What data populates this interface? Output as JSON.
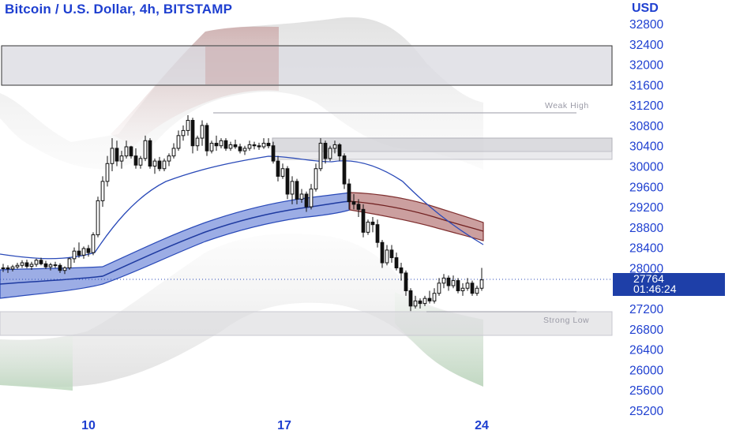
{
  "header": {
    "title": "Bitcoin / U.S. Dollar, 4h, BITSTAMP",
    "currency": "USD"
  },
  "price_label": {
    "price": "27764",
    "countdown": "01:46:24"
  },
  "zones": {
    "weak_high": "Weak High",
    "strong_low": "Strong Low"
  },
  "colors": {
    "accent": "#1e3fd0",
    "candle": "#111111",
    "ma_band": "#3a5bc8",
    "bear_band": "#a05050",
    "zone_gray": "#d0d0d6"
  },
  "chart_data": {
    "type": "candlestick",
    "symbol": "Bitcoin / U.S. Dollar",
    "interval": "4h",
    "exchange": "BITSTAMP",
    "y_ticks": [
      32800,
      32400,
      32000,
      31600,
      31200,
      30800,
      30400,
      30000,
      29600,
      29200,
      28800,
      28400,
      28000,
      27600,
      27200,
      26800,
      26400,
      26000,
      25600,
      25200
    ],
    "x_ticks": [
      "10",
      "17",
      "24"
    ],
    "ylim": [
      25100,
      33050
    ],
    "current_price": 27764,
    "candles": [
      [
        28000,
        28080,
        27920,
        28000
      ],
      [
        28000,
        28050,
        27900,
        27980
      ],
      [
        27980,
        28060,
        27930,
        28020
      ],
      [
        28020,
        28100,
        27980,
        28050
      ],
      [
        28050,
        28150,
        28000,
        28100
      ],
      [
        28100,
        28160,
        27990,
        28030
      ],
      [
        28030,
        28120,
        27960,
        28070
      ],
      [
        28070,
        28180,
        28020,
        28150
      ],
      [
        28150,
        28200,
        28050,
        28080
      ],
      [
        28080,
        28140,
        27980,
        28020
      ],
      [
        28020,
        28100,
        27950,
        28060
      ],
      [
        28060,
        28120,
        28000,
        28050
      ],
      [
        28050,
        28090,
        27900,
        27950
      ],
      [
        27950,
        28030,
        27880,
        28000
      ],
      [
        28000,
        28200,
        27960,
        28180
      ],
      [
        28180,
        28400,
        28100,
        28330
      ],
      [
        28330,
        28500,
        28200,
        28250
      ],
      [
        28250,
        28420,
        28180,
        28380
      ],
      [
        28380,
        28450,
        28220,
        28300
      ],
      [
        28300,
        28700,
        28250,
        28650
      ],
      [
        28650,
        29400,
        28600,
        29320
      ],
      [
        29320,
        29800,
        29200,
        29700
      ],
      [
        29700,
        30200,
        29600,
        30050
      ],
      [
        30050,
        30550,
        29900,
        30350
      ],
      [
        30350,
        30500,
        30000,
        30100
      ],
      [
        30100,
        30300,
        29950,
        30200
      ],
      [
        30200,
        30500,
        30150,
        30380
      ],
      [
        30380,
        30400,
        30150,
        30200
      ],
      [
        30200,
        30350,
        29950,
        30020
      ],
      [
        30020,
        30200,
        29950,
        30150
      ],
      [
        30150,
        30600,
        30100,
        30500
      ],
      [
        30500,
        30550,
        29950,
        30000
      ],
      [
        30000,
        30150,
        29850,
        30100
      ],
      [
        30100,
        30180,
        29900,
        29950
      ],
      [
        29950,
        30150,
        29900,
        30100
      ],
      [
        30100,
        30250,
        30000,
        30200
      ],
      [
        30200,
        30450,
        30150,
        30350
      ],
      [
        30350,
        30700,
        30300,
        30600
      ],
      [
        30600,
        30800,
        30500,
        30700
      ],
      [
        30700,
        31000,
        30600,
        30900
      ],
      [
        30900,
        30950,
        30250,
        30400
      ],
      [
        30400,
        30600,
        30300,
        30550
      ],
      [
        30550,
        30900,
        30400,
        30800
      ],
      [
        30800,
        30850,
        30200,
        30300
      ],
      [
        30300,
        30500,
        30250,
        30450
      ],
      [
        30450,
        30600,
        30300,
        30400
      ],
      [
        30400,
        30550,
        30350,
        30500
      ],
      [
        30500,
        30550,
        30300,
        30350
      ],
      [
        30350,
        30480,
        30300,
        30420
      ],
      [
        30420,
        30520,
        30340,
        30380
      ],
      [
        30380,
        30440,
        30250,
        30300
      ],
      [
        30300,
        30400,
        30220,
        30350
      ],
      [
        30350,
        30500,
        30300,
        30420
      ],
      [
        30420,
        30480,
        30330,
        30400
      ],
      [
        30400,
        30460,
        30320,
        30380
      ],
      [
        30380,
        30550,
        30340,
        30450
      ],
      [
        30450,
        30550,
        30350,
        30400
      ],
      [
        30400,
        30480,
        30050,
        30100
      ],
      [
        30100,
        30200,
        29700,
        29800
      ],
      [
        29800,
        30050,
        29750,
        29950
      ],
      [
        29950,
        30000,
        29350,
        29450
      ],
      [
        29450,
        29800,
        29250,
        29700
      ],
      [
        29700,
        29750,
        29250,
        29350
      ],
      [
        29350,
        29550,
        29280,
        29450
      ],
      [
        29450,
        29500,
        29100,
        29200
      ],
      [
        29200,
        29650,
        29150,
        29550
      ],
      [
        29550,
        30050,
        29500,
        29950
      ],
      [
        29950,
        30550,
        29900,
        30450
      ],
      [
        30450,
        30500,
        30050,
        30150
      ],
      [
        30150,
        30400,
        30100,
        30350
      ],
      [
        30350,
        30500,
        30250,
        30420
      ],
      [
        30420,
        30450,
        30100,
        30200
      ],
      [
        30200,
        30250,
        29550,
        29650
      ],
      [
        29650,
        29750,
        29150,
        29300
      ],
      [
        29300,
        29450,
        29150,
        29250
      ],
      [
        29250,
        29350,
        29000,
        29150
      ],
      [
        29150,
        29250,
        28600,
        28700
      ],
      [
        28700,
        28950,
        28650,
        28900
      ],
      [
        28900,
        29000,
        28700,
        28850
      ],
      [
        28850,
        28950,
        28400,
        28500
      ],
      [
        28500,
        28550,
        28000,
        28100
      ],
      [
        28100,
        28450,
        28050,
        28350
      ],
      [
        28350,
        28450,
        28100,
        28200
      ],
      [
        28200,
        28300,
        27950,
        28000
      ],
      [
        28000,
        28100,
        27750,
        27900
      ],
      [
        27900,
        27950,
        27450,
        27550
      ],
      [
        27550,
        27600,
        27150,
        27250
      ],
      [
        27250,
        27450,
        27200,
        27350
      ],
      [
        27350,
        27400,
        27200,
        27300
      ],
      [
        27300,
        27450,
        27250,
        27400
      ],
      [
        27400,
        27550,
        27300,
        27350
      ],
      [
        27350,
        27600,
        27300,
        27500
      ],
      [
        27500,
        27800,
        27450,
        27700
      ],
      [
        27700,
        27880,
        27600,
        27800
      ],
      [
        27800,
        27850,
        27550,
        27650
      ],
      [
        27650,
        27850,
        27600,
        27750
      ],
      [
        27750,
        27800,
        27500,
        27550
      ],
      [
        27550,
        27700,
        27450,
        27600
      ],
      [
        27600,
        27800,
        27550,
        27700
      ],
      [
        27700,
        27750,
        27450,
        27500
      ],
      [
        27500,
        27650,
        27450,
        27600
      ],
      [
        27600,
        28000,
        27550,
        27764
      ]
    ]
  }
}
